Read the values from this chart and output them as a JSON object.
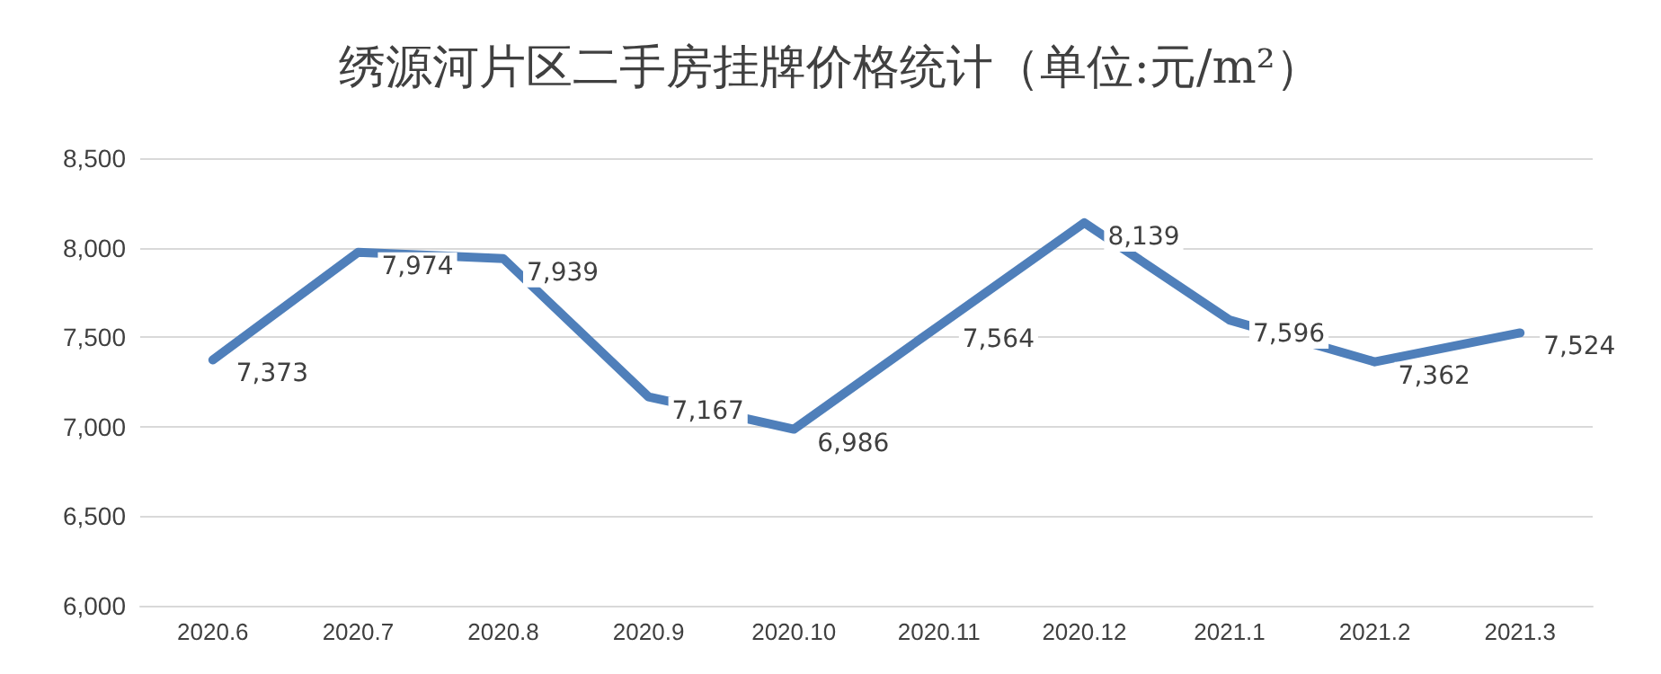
{
  "chart_data": {
    "type": "line",
    "title": "绣源河片区二手房挂牌价格统计（单位:元/m²）",
    "categories": [
      "2020.6",
      "2020.7",
      "2020.8",
      "2020.9",
      "2020.10",
      "2020.11",
      "2020.12",
      "2021.1",
      "2021.2",
      "2021.3"
    ],
    "series": [
      {
        "color": "#4f7fba",
        "values": [
          7373,
          7974,
          7939,
          7167,
          6986,
          7564,
          8139,
          7596,
          7362,
          7524
        ],
        "value_labels": [
          "7,373",
          "7,974",
          "7,939",
          "7,167",
          "6,986",
          "7,564",
          "8,139",
          "7,596",
          "7,362",
          "7,524"
        ]
      }
    ],
    "ylim": [
      6000,
      8500
    ],
    "yticks": [
      {
        "value": 6000,
        "label": "6,000"
      },
      {
        "value": 6500,
        "label": "6,500"
      },
      {
        "value": 7000,
        "label": "7,000"
      },
      {
        "value": 7500,
        "label": "7,500"
      },
      {
        "value": 8000,
        "label": "8,000"
      },
      {
        "value": 8500,
        "label": "8,500"
      }
    ],
    "grid": "y",
    "marker": "none",
    "line_style": "solid"
  }
}
